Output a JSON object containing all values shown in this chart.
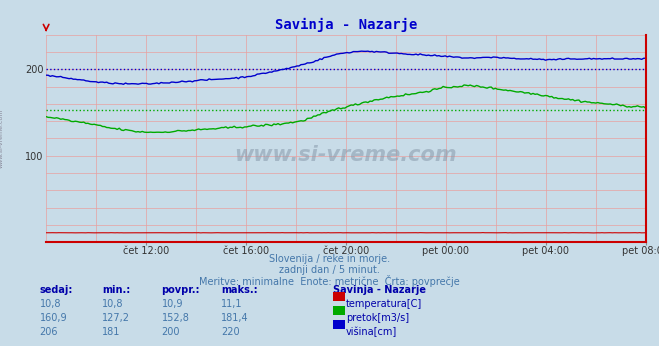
{
  "title": "Savinja - Nazarje",
  "bg_color": "#c8dce8",
  "plot_bg_color": "#c8dce8",
  "xticklabels": [
    "čet 12:00",
    "čet 16:00",
    "čet 20:00",
    "pet 00:00",
    "pet 04:00",
    "pet 08:00"
  ],
  "xtick_fracs": [
    0.1667,
    0.3333,
    0.5,
    0.6667,
    0.8333,
    1.0
  ],
  "ymin": 0,
  "ymax": 240,
  "yticks": [
    100,
    200
  ],
  "subtitle1": "Slovenija / reke in morje.",
  "subtitle2": "zadnji dan / 5 minut.",
  "subtitle3": "Meritve: minimalne  Enote: metrične  Črta: povprečje",
  "table_headers": [
    "sedaj:",
    "min.:",
    "povpr.:",
    "maks.:"
  ],
  "table_col0": [
    "10,8",
    "160,9",
    "206"
  ],
  "table_col1": [
    "10,8",
    "127,2",
    "181"
  ],
  "table_col2": [
    "10,9",
    "152,8",
    "200"
  ],
  "table_col3": [
    "11,1",
    "181,4",
    "220"
  ],
  "legend_labels": [
    "temperatura[C]",
    "pretok[m3/s]",
    "višina[cm]"
  ],
  "legend_colors": [
    "#cc0000",
    "#00aa00",
    "#0000cc"
  ],
  "legend_station": "Savinja - Nazarje",
  "avg_pretok": 152.8,
  "avg_visina": 200,
  "line_color_temp": "#cc0000",
  "line_color_pretok": "#00aa00",
  "line_color_visina": "#0000cc",
  "title_color": "#0000cc",
  "subtitle_color": "#4477aa",
  "watermark": "www.si-vreme.com",
  "n_points": 288
}
